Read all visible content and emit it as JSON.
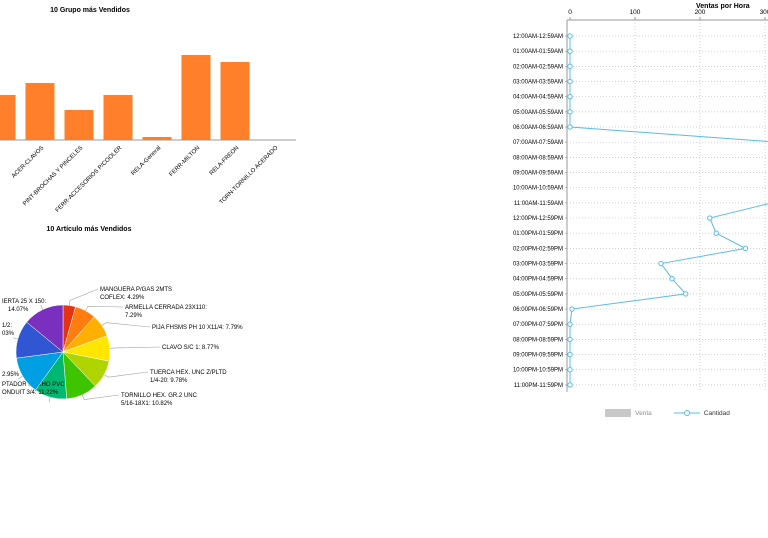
{
  "colors": {
    "bar_fill": "#FF7F2B",
    "line_series": "#58BCE8",
    "grid_dotted": "#C0C0C0",
    "axis_line": "#999999",
    "leader_line": "#A0A0A0",
    "label_text": "#000000",
    "legend_venta_swatch": "#C8C8C8",
    "legend_venta_text": "#8F8F8F",
    "legend_cantidad_text": "#333333"
  },
  "chart_data": [
    {
      "type": "bar",
      "title": "10 Grupo más Vendidos",
      "categories": [
        "",
        "ACER-CLAVOS",
        "PINT-BROCHAS Y PINCELES",
        "FERR-ACCESORIOS P/COOLER",
        "RELA-General",
        "FERR-MILTON",
        "RELA-FREON",
        "TORN-TORNILLO ACERADO"
      ],
      "values": [
        45,
        57,
        30,
        45,
        3,
        85,
        78,
        0
      ],
      "ylim": [
        0,
        122
      ],
      "note": "left edge of plot clipped by viewport; y-axis not visible, values estimated in pixel units"
    },
    {
      "type": "pie",
      "title": "10 Artículo más Vendidos",
      "slices": [
        {
          "pct": 4.29,
          "color": "#E53212",
          "label_lines": [
            "MANGUERA P/GAS 2MTS",
            "COFLEX: 4.29%"
          ]
        },
        {
          "pct": 7.29,
          "color": "#FF7D0E",
          "label_lines": [
            "ARMELLA CERRADA 23X110:",
            "7.29%"
          ]
        },
        {
          "pct": 7.79,
          "color": "#FFAF00",
          "label_lines": [
            "PIJA FHSMS PH 10 X11/4: 7.79%"
          ]
        },
        {
          "pct": 8.77,
          "color": "#FFE600",
          "label_lines": [
            "CLAVO S/C 1: 8.77%"
          ]
        },
        {
          "pct": 9.78,
          "color": "#AFD400",
          "label_lines": [
            "TUERCA HEX. UNC Z/PLTD",
            "1/4-20: 9.78%"
          ]
        },
        {
          "pct": 10.82,
          "color": "#3FC400",
          "label_lines": [
            "TORNILLO HEX. GR.2 UNC",
            "5/16-18X1: 10.82%"
          ]
        },
        {
          "pct": 11.22,
          "color": "#00B871",
          "label_lines": [
            "PTADOR MACHO PVC",
            "ONDUIT 3/4: 11.22%"
          ],
          "clipped_label": true
        },
        {
          "pct": 12.95,
          "color": "#009FE3",
          "label_lines": [
            "2.95%"
          ],
          "clipped_label": true
        },
        {
          "pct": 13.03,
          "color": "#3056D3",
          "label_lines": [
            "1/2:",
            "03%"
          ],
          "clipped_label": true
        },
        {
          "pct": 14.07,
          "color": "#7B2FBE",
          "label_lines": [
            "IERTA 25 X 150:",
            "14.07%"
          ],
          "clipped_label": true
        }
      ],
      "note": "labels on the left side are cut off by the viewport edge"
    },
    {
      "type": "line",
      "title": "Ventas por Hora",
      "x_axis_position": "top",
      "x_ticks": [
        0,
        100,
        200,
        300
      ],
      "categories": [
        "12:00AM-12:59AM",
        "01:00AM-01:59AM",
        "02:00AM-02:59AM",
        "03:00AM-03:59AM",
        "04:00AM-04:59AM",
        "05:00AM-05:59AM",
        "06:00AM-06:59AM",
        "07:00AM-07:59AM",
        "08:00AM-08:59AM",
        "09:00AM-09:59AM",
        "10:00AM-10:59AM",
        "11:00AM-11:59AM",
        "12:00PM-12:59PM",
        "01:00PM-01:59PM",
        "02:00PM-02:59PM",
        "03:00PM-03:59PM",
        "04:00PM-04:59PM",
        "05:00PM-05:59PM",
        "06:00PM-06:59PM",
        "07:00PM-07:59PM",
        "08:00PM-08:59PM",
        "09:00PM-09:59PM",
        "10:00PM-10:59PM",
        "11:00PM-11:59PM"
      ],
      "series": [
        {
          "name": "Cantidad",
          "values": [
            0,
            0,
            0,
            0,
            0,
            0,
            0,
            320,
            340,
            335,
            325,
            310,
            215,
            225,
            270,
            140,
            157,
            178,
            3,
            0,
            0,
            0,
            0,
            0
          ]
        }
      ],
      "legend": [
        "Venta",
        "Cantidad"
      ],
      "legend_position": "bottom",
      "note": "values above ~305 run past the clipped right edge of the viewport; peak morning values are estimates"
    }
  ]
}
